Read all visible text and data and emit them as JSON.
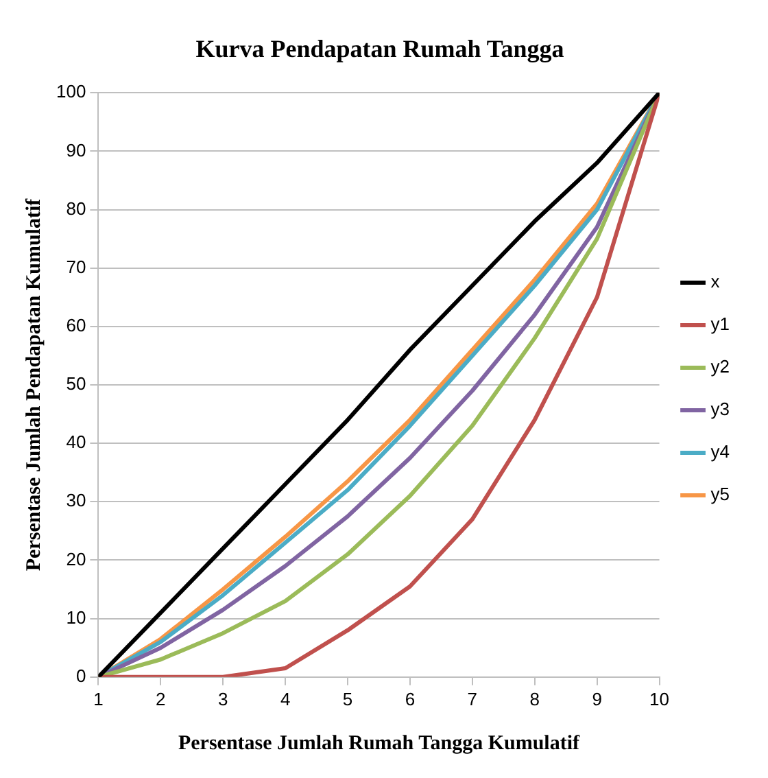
{
  "chart_data": {
    "type": "line",
    "title": "Kurva Pendapatan Rumah Tangga",
    "xlabel": "Persentase Jumlah Rumah Tangga Kumulatif",
    "ylabel": "Persentase Jumlah Pendapatan Kumulatif",
    "x": [
      1,
      2,
      3,
      4,
      5,
      6,
      7,
      8,
      9,
      10
    ],
    "series": [
      {
        "name": "x",
        "color": "#000000",
        "values": [
          0,
          11,
          22,
          33,
          44,
          56,
          67,
          78,
          88,
          100
        ]
      },
      {
        "name": "y1",
        "color": "#c0504d",
        "values": [
          0,
          0,
          0,
          1.5,
          8,
          15.5,
          27,
          44,
          65,
          100
        ]
      },
      {
        "name": "y2",
        "color": "#9bbb59",
        "values": [
          0,
          3,
          7.5,
          13,
          21,
          31,
          43,
          58,
          75,
          100
        ]
      },
      {
        "name": "y3",
        "color": "#8064a2",
        "values": [
          0,
          5,
          11.5,
          19,
          27.5,
          37.5,
          49,
          62,
          77,
          100
        ]
      },
      {
        "name": "y4",
        "color": "#4bacc6",
        "values": [
          0,
          6,
          14,
          23,
          32,
          43,
          55,
          67,
          80,
          100
        ]
      },
      {
        "name": "y5",
        "color": "#f79646",
        "values": [
          0,
          6.5,
          15,
          24,
          33.5,
          44,
          56,
          68,
          81,
          100
        ]
      }
    ],
    "xlim": [
      1,
      10
    ],
    "xticks": [
      1,
      2,
      3,
      4,
      5,
      6,
      7,
      8,
      9,
      10
    ],
    "ylim": [
      0,
      100
    ],
    "yticks": [
      0,
      10,
      20,
      30,
      40,
      50,
      60,
      70,
      80,
      90,
      100
    ],
    "grid": "y",
    "legend": "right",
    "marker": "none",
    "line_style": "solid"
  }
}
